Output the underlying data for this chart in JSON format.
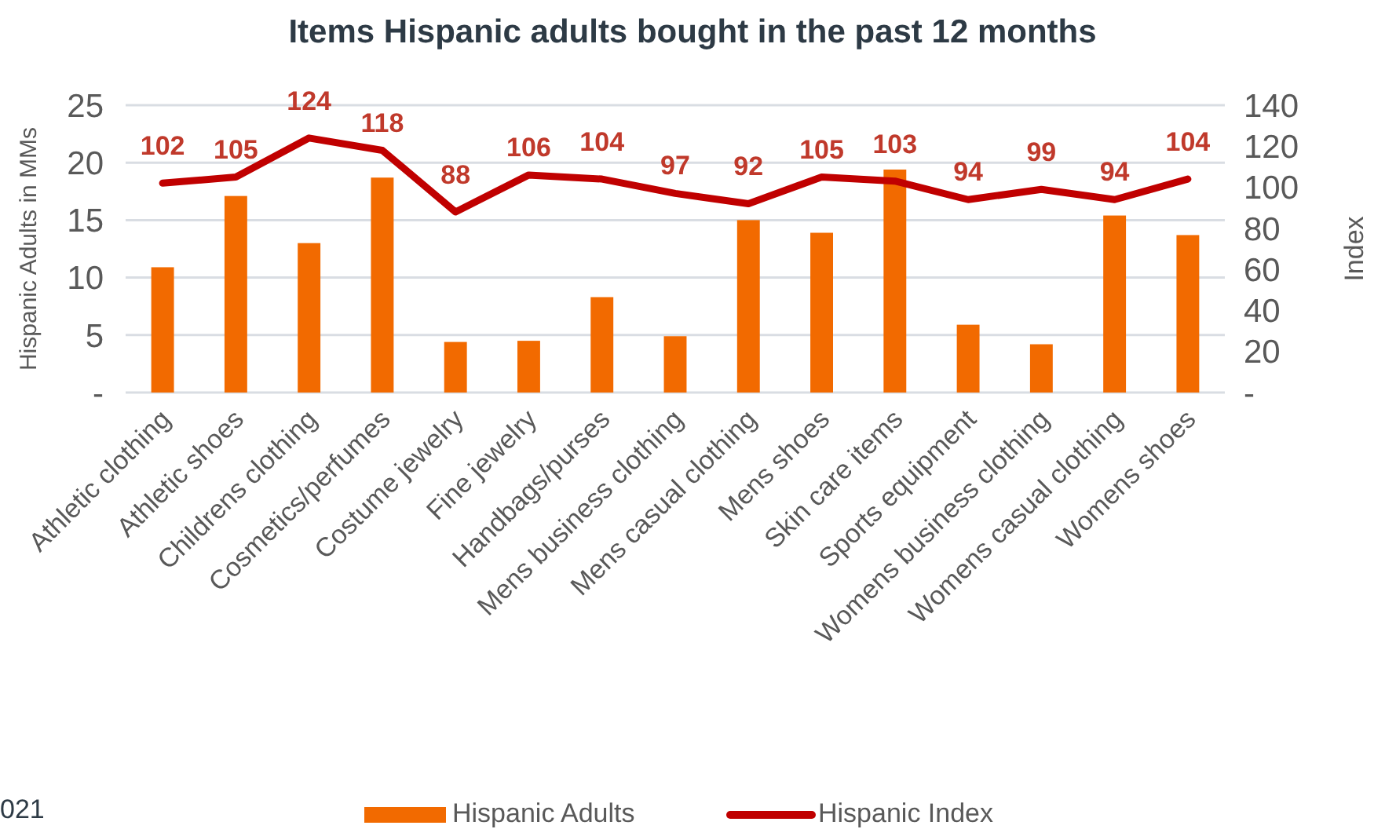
{
  "chart_data": {
    "type": "bar",
    "title": "Items Hispanic adults bought in the past 12 months",
    "ylabel": "Hispanic Adults in MMs",
    "y2label": "Index",
    "categories": [
      "Athletic clothing",
      "Athletic shoes",
      "Childrens clothing",
      "Cosmetics/perfumes",
      "Costume jewelry",
      "Fine jewelry",
      "Handbags/purses",
      "Mens business clothing",
      "Mens casual clothing",
      "Mens shoes",
      "Skin care items",
      "Sports equipment",
      "Womens business clothing",
      "Womens casual clothing",
      "Womens shoes"
    ],
    "series": [
      {
        "name": "Hispanic Adults",
        "color": "#f26a00",
        "values": [
          10.9,
          17.1,
          13.0,
          18.7,
          4.4,
          4.5,
          8.3,
          4.9,
          15.0,
          13.9,
          19.4,
          5.9,
          4.2,
          15.4,
          13.7
        ]
      },
      {
        "name": "Hispanic Index",
        "type": "line",
        "axis": "y2",
        "color": "#c00000",
        "values": [
          102,
          105,
          124,
          118,
          88,
          106,
          104,
          97,
          92,
          105,
          103,
          94,
          99,
          94,
          104
        ],
        "value_labels": [
          "102",
          "105",
          "124",
          "118",
          "88",
          "106",
          "104",
          "97",
          "92",
          "105",
          "103",
          "94",
          "99",
          "94",
          "104"
        ]
      }
    ],
    "ylim": [
      0,
      25
    ],
    "yticks": [
      {
        "value": 0,
        "label": "-"
      },
      5,
      10,
      15,
      20,
      25
    ],
    "y2lim": [
      0,
      140
    ],
    "y2ticks": [
      {
        "value": 0,
        "label": "-"
      },
      20,
      40,
      60,
      80,
      100,
      120,
      140
    ],
    "grid": "y",
    "legend": "bottom",
    "marker": "none",
    "line_style": "solid",
    "annotations": [
      "021"
    ]
  }
}
